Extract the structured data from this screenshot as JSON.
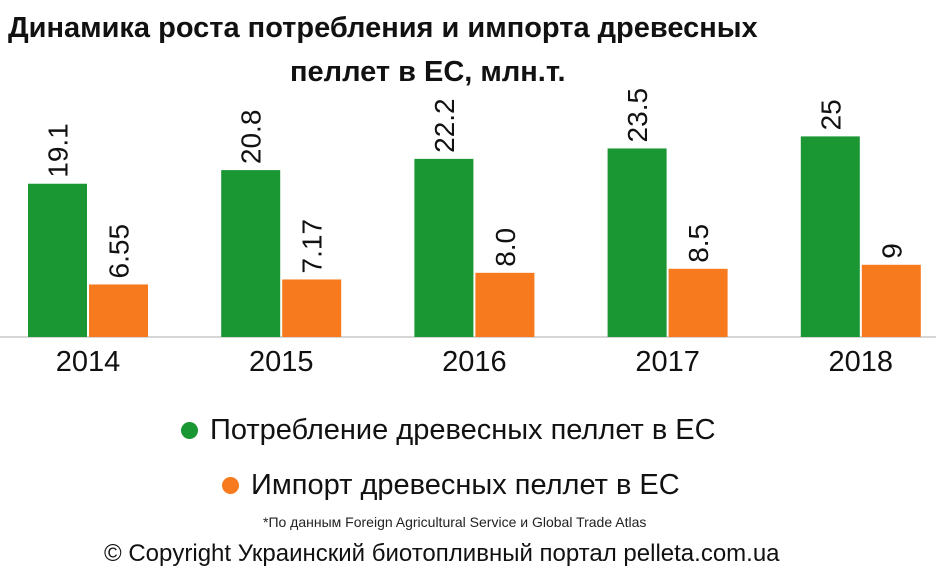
{
  "title": {
    "line1": "Динамика роста потребления и импорта древесных",
    "line2": "пеллет в ЕС, млн.т."
  },
  "legend": {
    "consumption": "Потребление древесных пеллет в ЕС",
    "import": "Импорт древесных пеллет в ЕС"
  },
  "note": "*По данным  Foreign Agricultural Service и Global Trade Atlas",
  "copyright": "© Copyright Украинский биотопливный портал pelleta.com.ua",
  "colors": {
    "consumption": "#1a9632",
    "import": "#f77a1e"
  },
  "chart_data": {
    "type": "bar",
    "title": "Динамика роста потребления и импорта древесных пеллет в ЕС, млн.т.",
    "categories": [
      "2014",
      "2015",
      "2016",
      "2017",
      "2018"
    ],
    "series": [
      {
        "name": "Потребление древесных пеллет в ЕС",
        "values": [
          19.1,
          20.8,
          22.2,
          23.5,
          25
        ],
        "labels": [
          "19.1",
          "20.8",
          "22.2",
          "23.5",
          "25"
        ]
      },
      {
        "name": "Импорт древесных пеллет в ЕС",
        "values": [
          6.55,
          7.17,
          8.0,
          8.5,
          9
        ],
        "labels": [
          "6.55",
          "7.17",
          "8.0",
          "8.5",
          "9"
        ]
      }
    ],
    "xlabel": "",
    "ylabel": "",
    "ylim": [
      0,
      42
    ],
    "grid": false,
    "legend_position": "bottom"
  }
}
